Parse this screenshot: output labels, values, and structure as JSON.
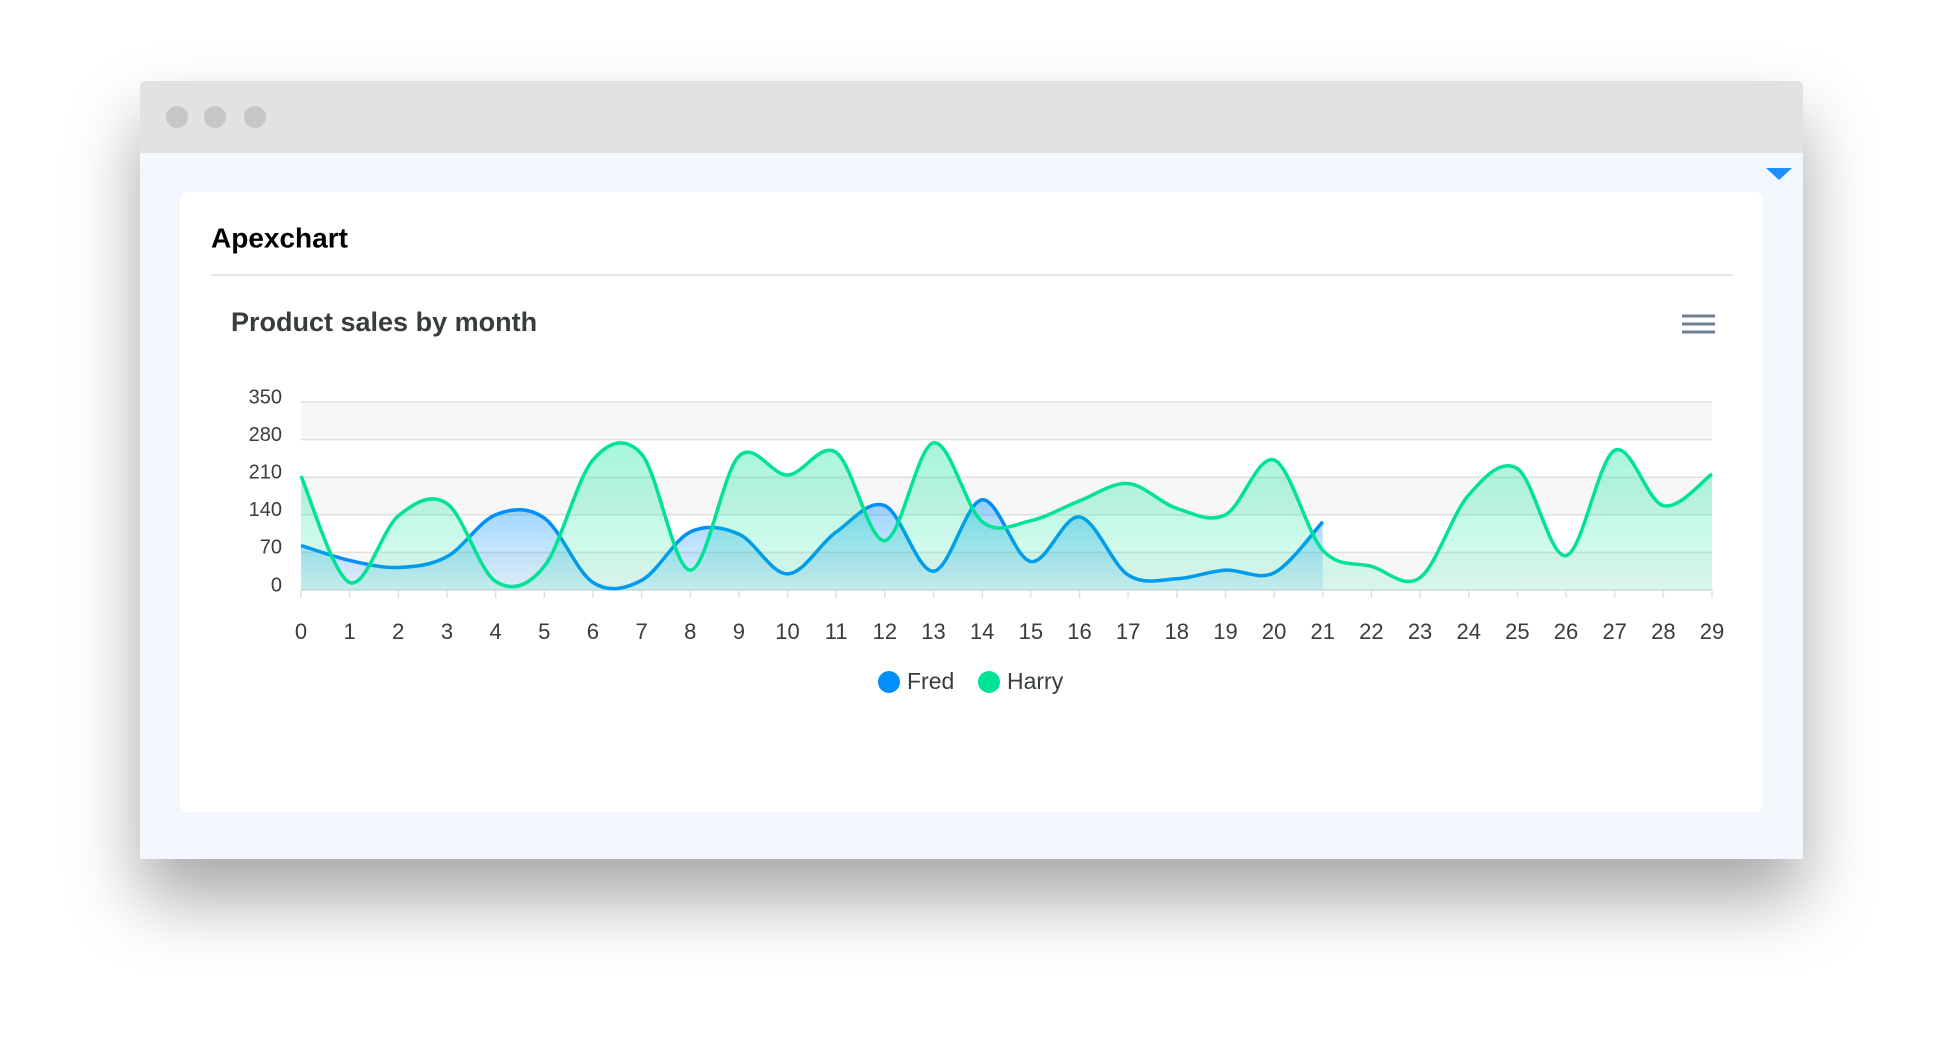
{
  "header": {
    "title": "Apexchart"
  },
  "chart_data": {
    "type": "area",
    "title": "Product sales by month",
    "x": [
      0,
      1,
      2,
      3,
      4,
      5,
      6,
      7,
      8,
      9,
      10,
      11,
      12,
      13,
      14,
      15,
      16,
      17,
      18,
      19,
      20,
      21,
      22,
      23,
      24,
      25,
      26,
      27,
      28,
      29
    ],
    "xlim": [
      0,
      29
    ],
    "xticks": [
      0,
      1,
      2,
      3,
      4,
      5,
      6,
      7,
      8,
      9,
      10,
      11,
      12,
      13,
      14,
      15,
      16,
      17,
      18,
      19,
      20,
      21,
      22,
      23,
      24,
      25,
      26,
      27,
      28,
      29
    ],
    "ylim": [
      0,
      350
    ],
    "yticks": [
      0,
      70,
      140,
      210,
      280,
      350
    ],
    "grid": true,
    "legend": "bottom",
    "series": [
      {
        "name": "Fred",
        "color": "#008ffb",
        "values": [
          83,
          55,
          42,
          62,
          140,
          134,
          14,
          18,
          108,
          104,
          30,
          108,
          157,
          35,
          168,
          53,
          136,
          28,
          21,
          37,
          32,
          127,
          null,
          null,
          null,
          null,
          null,
          null,
          null,
          null
        ]
      },
      {
        "name": "Harry",
        "color": "#00e396",
        "values": [
          212,
          14,
          138,
          161,
          16,
          44,
          242,
          253,
          37,
          249,
          214,
          256,
          92,
          274,
          127,
          129,
          166,
          198,
          152,
          140,
          242,
          74,
          44,
          23,
          177,
          226,
          64,
          260,
          157,
          216
        ]
      }
    ]
  }
}
